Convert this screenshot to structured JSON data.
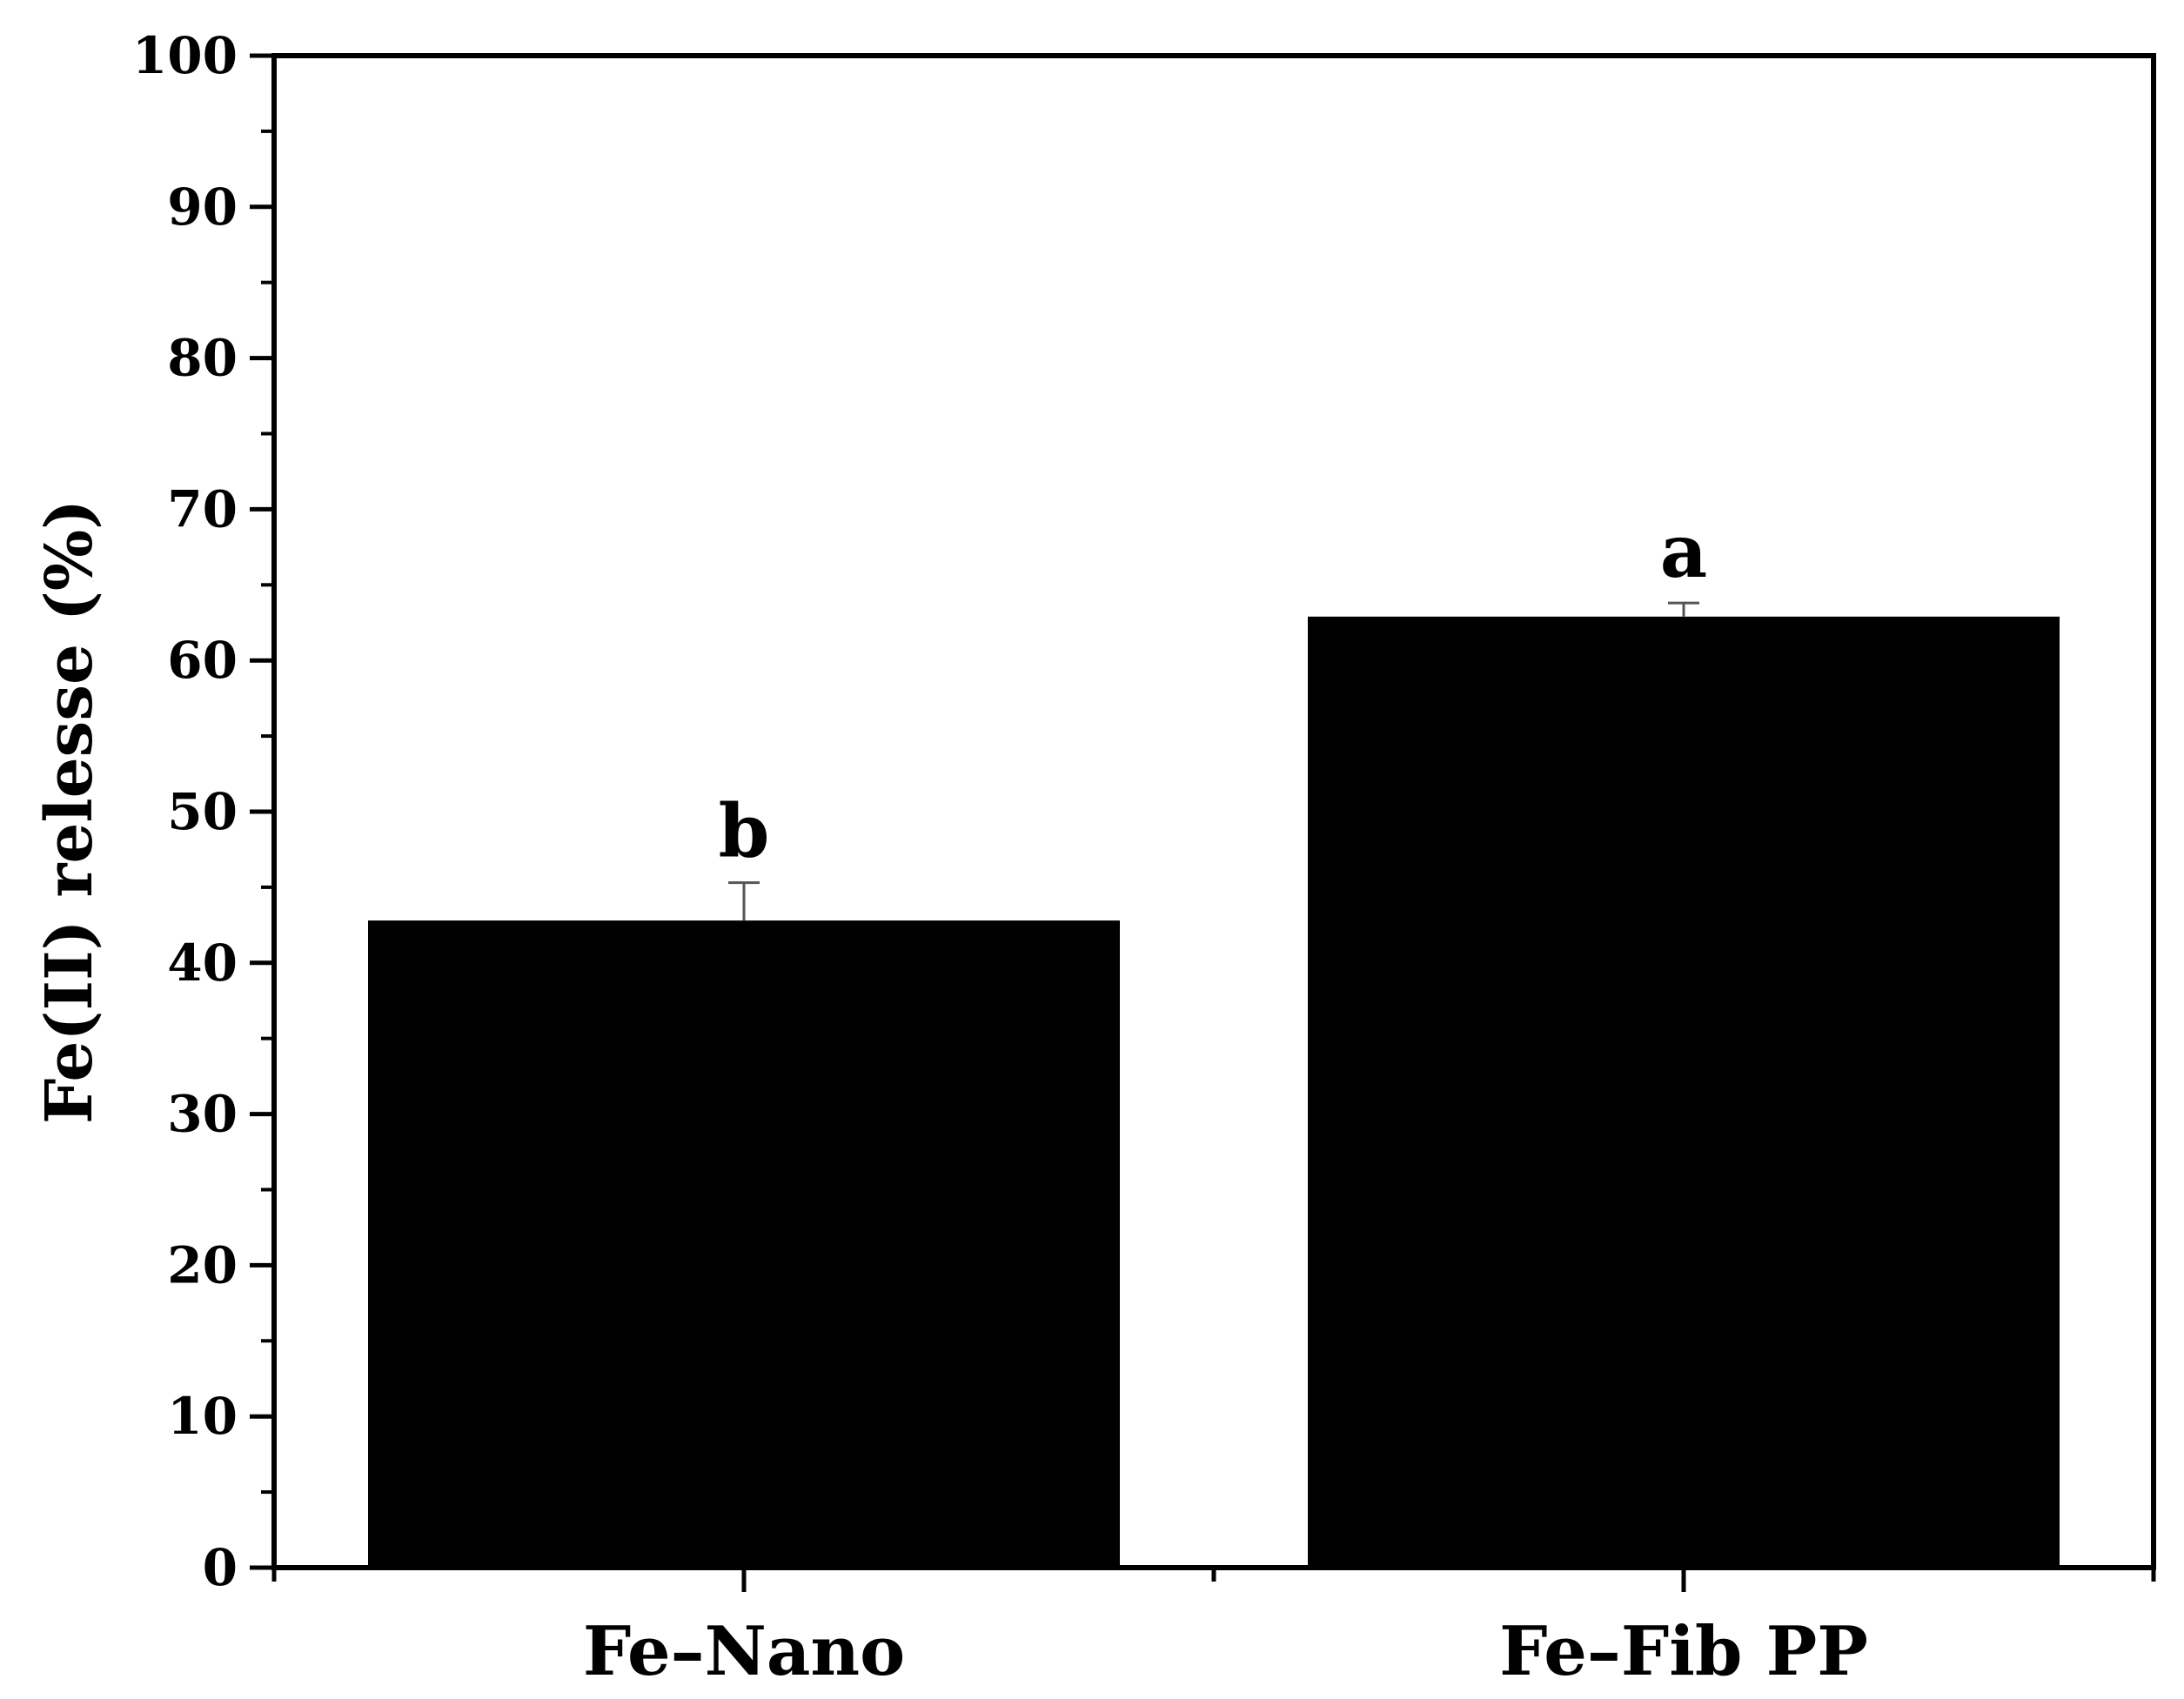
{
  "chart_data": {
    "type": "bar",
    "categories": [
      "Fe–Nano",
      "Fe–Fib PP"
    ],
    "values": [
      42.8,
      62.9
    ],
    "errors": [
      2.5,
      0.9
    ],
    "significance_letters": [
      "b",
      "a"
    ],
    "ylabel": "Fe(II) relesse (%)",
    "xlabel": "",
    "ylim": [
      0,
      100
    ],
    "yticks": [
      "0",
      "10",
      "20",
      "30",
      "40",
      "50",
      "60",
      "70",
      "80",
      "90",
      "100"
    ],
    "grid": false,
    "legend": "none",
    "bar_color": "#000000"
  }
}
